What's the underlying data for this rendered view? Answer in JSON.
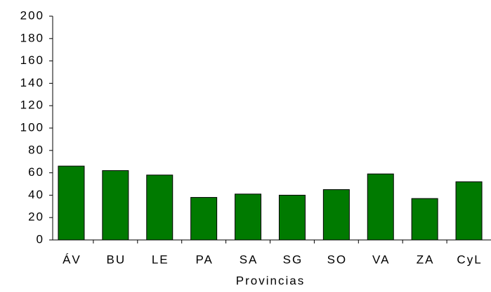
{
  "chart_data": {
    "type": "bar",
    "x_label": "Provincias",
    "categories": [
      "ÁV",
      "BU",
      "LE",
      "PA",
      "SA",
      "SG",
      "SO",
      "VA",
      "ZA",
      "CyL"
    ],
    "values": [
      66,
      62,
      58,
      38,
      41,
      40,
      45,
      59,
      37,
      52
    ],
    "color": "#007a00",
    "ylim": [
      0,
      200
    ],
    "yticks": [
      0,
      20,
      40,
      60,
      80,
      100,
      120,
      140,
      160,
      180,
      200
    ],
    "grid": false
  }
}
